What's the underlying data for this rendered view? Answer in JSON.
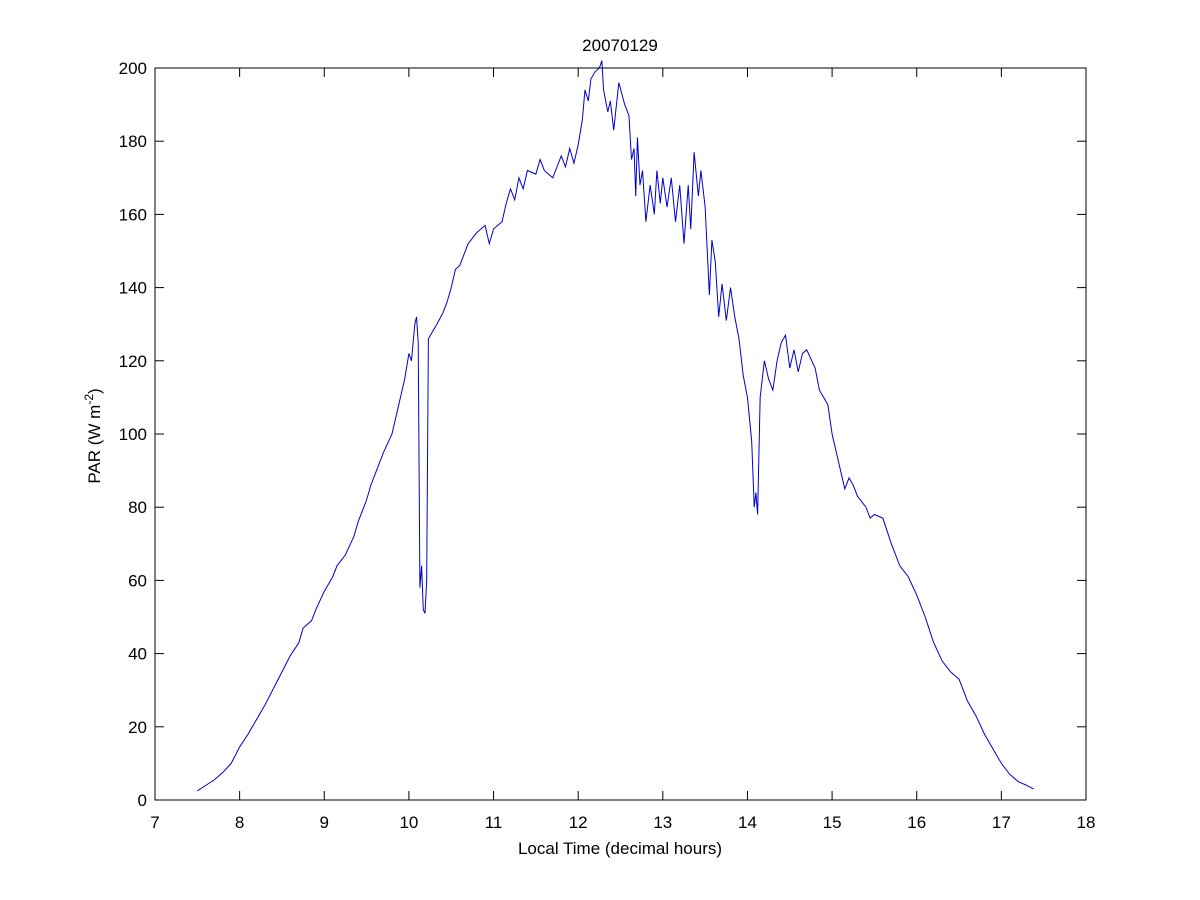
{
  "chart_data": {
    "type": "line",
    "title": "20070129",
    "xlabel": "Local Time (decimal hours)",
    "ylabel": {
      "text": "PAR (W m",
      "superscript": "-2",
      "suffix": ")"
    },
    "xlim": [
      7,
      18
    ],
    "ylim": [
      0,
      200
    ],
    "xticks": [
      7,
      8,
      9,
      10,
      11,
      12,
      13,
      14,
      15,
      16,
      17,
      18
    ],
    "yticks": [
      0,
      20,
      40,
      60,
      80,
      100,
      120,
      140,
      160,
      180,
      200
    ],
    "grid": false,
    "series": [
      {
        "color": "#0000cc",
        "x": [
          7.5,
          7.6,
          7.7,
          7.8,
          7.9,
          8.0,
          8.1,
          8.2,
          8.3,
          8.4,
          8.5,
          8.6,
          8.7,
          8.75,
          8.85,
          8.9,
          9.0,
          9.1,
          9.15,
          9.25,
          9.35,
          9.4,
          9.5,
          9.55,
          9.6,
          9.7,
          9.8,
          9.85,
          9.9,
          9.95,
          10.0,
          10.03,
          10.07,
          10.09,
          10.11,
          10.13,
          10.15,
          10.17,
          10.19,
          10.21,
          10.23,
          10.28,
          10.33,
          10.4,
          10.45,
          10.5,
          10.55,
          10.6,
          10.7,
          10.8,
          10.9,
          10.95,
          11.0,
          11.1,
          11.15,
          11.2,
          11.25,
          11.3,
          11.35,
          11.4,
          11.5,
          11.55,
          11.6,
          11.7,
          11.8,
          11.85,
          11.9,
          11.95,
          12.0,
          12.05,
          12.08,
          12.12,
          12.15,
          12.2,
          12.25,
          12.28,
          12.3,
          12.35,
          12.38,
          12.42,
          12.48,
          12.55,
          12.6,
          12.63,
          12.66,
          12.68,
          12.7,
          12.73,
          12.76,
          12.8,
          12.85,
          12.9,
          12.93,
          12.97,
          13.0,
          13.05,
          13.1,
          13.15,
          13.2,
          13.25,
          13.3,
          13.33,
          13.37,
          13.42,
          13.45,
          13.5,
          13.55,
          13.58,
          13.62,
          13.66,
          13.7,
          13.75,
          13.8,
          13.85,
          13.9,
          13.95,
          14.0,
          14.05,
          14.08,
          14.1,
          14.12,
          14.15,
          14.2,
          14.25,
          14.3,
          14.35,
          14.4,
          14.45,
          14.5,
          14.55,
          14.6,
          14.65,
          14.7,
          14.8,
          14.85,
          14.95,
          15.0,
          15.05,
          15.1,
          15.15,
          15.2,
          15.25,
          15.3,
          15.4,
          15.45,
          15.5,
          15.6,
          15.7,
          15.8,
          15.9,
          16.0,
          16.1,
          16.2,
          16.3,
          16.4,
          16.5,
          16.6,
          16.7,
          16.8,
          16.9,
          17.0,
          17.1,
          17.2,
          17.3,
          17.38
        ],
        "values": [
          2.5,
          4,
          5.5,
          7.5,
          10,
          14.5,
          18,
          22,
          26,
          30.5,
          35,
          39.5,
          43,
          47,
          49,
          52,
          57,
          61,
          64,
          67,
          72,
          76,
          82,
          86,
          89,
          95,
          100,
          105,
          110,
          115,
          122,
          120,
          130,
          132,
          125,
          58,
          64,
          52,
          51,
          60,
          126,
          128,
          130,
          133,
          136,
          140,
          145,
          146,
          152,
          155,
          157,
          152,
          156,
          158,
          163,
          167,
          164,
          170,
          167,
          172,
          171,
          175,
          172,
          170,
          176,
          173,
          178,
          174,
          179,
          186,
          194,
          191,
          197,
          199,
          200,
          202,
          194,
          188,
          191,
          183,
          196,
          190,
          187,
          175,
          178,
          165,
          181,
          168,
          172,
          158,
          168,
          160,
          172,
          163,
          170,
          162,
          170,
          158,
          168,
          152,
          168,
          156,
          177,
          165,
          172,
          162,
          138,
          153,
          147,
          132,
          141,
          131,
          140,
          132,
          126,
          116,
          110,
          98,
          80,
          84,
          78,
          110,
          120,
          115,
          112,
          120,
          125,
          127,
          118,
          123,
          117,
          122,
          123,
          118,
          112,
          108,
          100,
          95,
          90,
          85,
          88,
          86,
          83,
          80,
          77,
          78,
          77,
          70,
          64,
          61,
          56,
          50,
          43,
          38,
          35,
          33,
          27,
          23,
          18,
          14,
          10,
          7,
          5,
          4,
          3
        ]
      }
    ]
  }
}
